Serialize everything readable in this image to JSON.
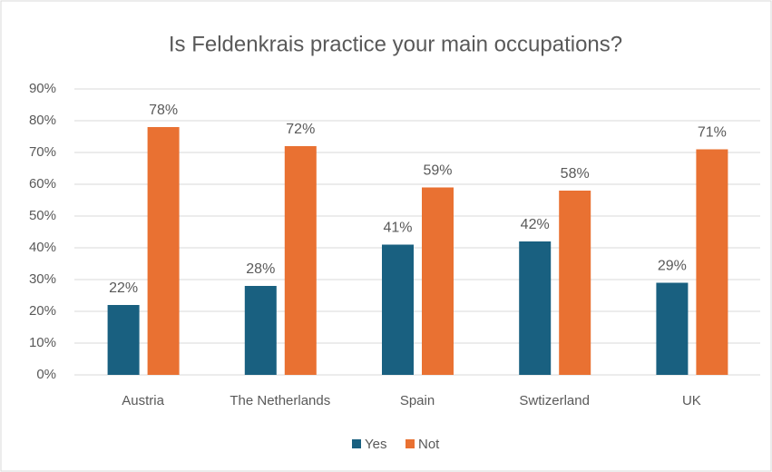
{
  "chart_data": {
    "type": "bar",
    "title": "Is Feldenkrais practice your main occupations?",
    "categories": [
      "Austria",
      "The Netherlands",
      "Spain",
      "Swtizerland",
      "UK"
    ],
    "series": [
      {
        "name": "Yes",
        "color": "#196080",
        "values": [
          22,
          28,
          41,
          42,
          29
        ],
        "value_labels": [
          "22%",
          "28%",
          "41%",
          "42%",
          "29%"
        ]
      },
      {
        "name": "Not",
        "color": "#e97132",
        "values": [
          78,
          72,
          59,
          58,
          71
        ],
        "value_labels": [
          "78%",
          "72%",
          "59%",
          "58%",
          "71%"
        ]
      }
    ],
    "ylim": [
      0,
      90
    ],
    "yticks": [
      {
        "value": 0,
        "label": "0%"
      },
      {
        "value": 10,
        "label": "10%"
      },
      {
        "value": 20,
        "label": "20%"
      },
      {
        "value": 30,
        "label": "30%"
      },
      {
        "value": 40,
        "label": "40%"
      },
      {
        "value": 50,
        "label": "50%"
      },
      {
        "value": 60,
        "label": "60%"
      },
      {
        "value": 70,
        "label": "70%"
      },
      {
        "value": 80,
        "label": "80%"
      },
      {
        "value": 90,
        "label": "90%"
      }
    ],
    "grid": true,
    "legend": "bottom"
  }
}
